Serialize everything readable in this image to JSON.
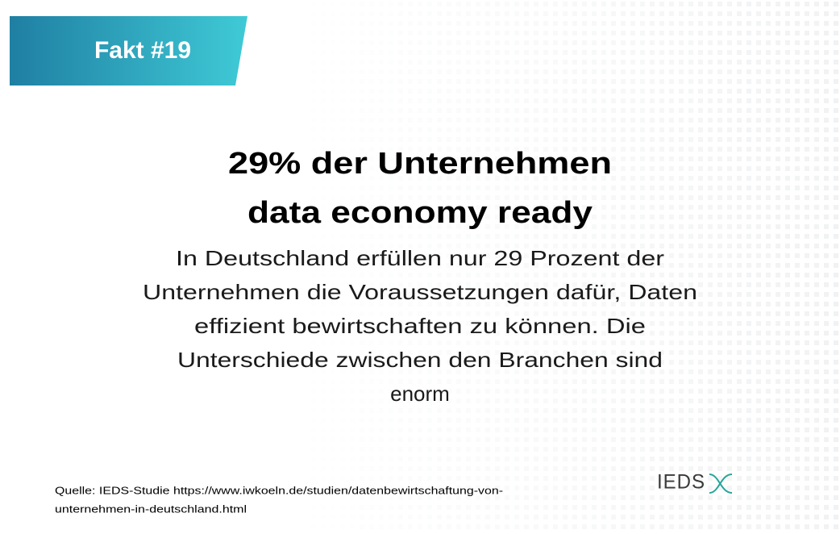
{
  "badge": "Fakt #19",
  "headline": [
    "29% der Unternehmen",
    "data economy ready"
  ],
  "body": [
    "In Deutschland erfüllen nur 29 Prozent der",
    "Unternehmen die Voraussetzungen dafür, Daten",
    "effizient bewirtschaften zu können. Die",
    "Unterschiede zwischen den Branchen sind",
    "enorm"
  ],
  "source": [
    "Quelle: IEDS-Studie https://www.iwkoeln.de/studien/datenbewirtschaftung-von-",
    "unternehmen-in-deutschland.html"
  ],
  "logo": "IEDS"
}
